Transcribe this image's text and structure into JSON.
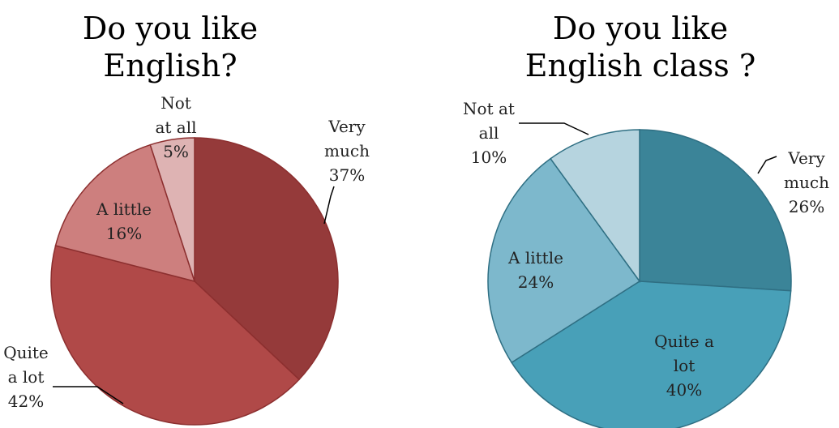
{
  "chart_data": [
    {
      "type": "pie",
      "title": "Do you like\nEnglish?",
      "slices": [
        {
          "label": "Very\nmuch",
          "pct": "37%",
          "value": 37,
          "color": "#953a3a"
        },
        {
          "label": "Quite\na lot",
          "pct": "42%",
          "value": 42,
          "color": "#b04948"
        },
        {
          "label": "A little",
          "pct": "16%",
          "value": 16,
          "color": "#cd7f7e"
        },
        {
          "label": "Not\nat all",
          "pct": "5%",
          "value": 5,
          "color": "#deb3b3"
        }
      ],
      "stroke": "#8c2f2f"
    },
    {
      "type": "pie",
      "title": "Do you like\nEnglish class ?",
      "slices": [
        {
          "label": "Very\nmuch",
          "pct": "26%",
          "value": 26,
          "color": "#3b8498"
        },
        {
          "label": "Quite a\nlot",
          "pct": "40%",
          "value": 40,
          "color": "#48a0b8"
        },
        {
          "label": "A little",
          "pct": "24%",
          "value": 24,
          "color": "#7db8cc"
        },
        {
          "label": "Not at\nall",
          "pct": "10%",
          "value": 10,
          "color": "#b6d4df"
        }
      ],
      "stroke": "#2f6f83"
    }
  ]
}
